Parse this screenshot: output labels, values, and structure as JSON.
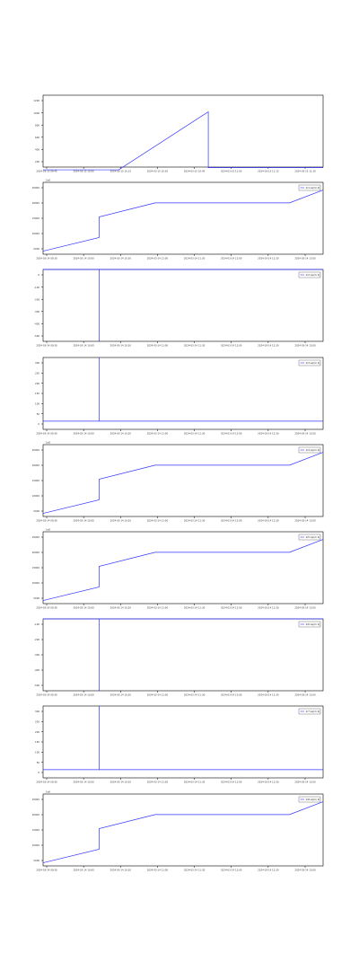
{
  "chart_data": [
    {
      "type": "line",
      "legend": "",
      "legend_position": "none",
      "offset_label": "",
      "xticks": [
        "2024-03-15 09:45",
        "2024-03-15 10:00",
        "2024-03-15 10:15",
        "2024-03-15 10:30",
        "2024-03-15 10:45",
        "2024-03-15 11:00",
        "2024-03-15 11:15",
        "2024-03-15 11:30"
      ],
      "yticks": [
        "1200",
        "1000",
        "800",
        "600",
        "400",
        "200"
      ],
      "ylim": [
        50,
        1350
      ],
      "series": [
        {
          "x": [
            0,
            0.27,
            0.59,
            0.59,
            1
          ],
          "y": [
            0,
            0,
            1050,
            40,
            40
          ]
        }
      ],
      "grid": false
    },
    {
      "type": "line",
      "legend": "1/1 sq/m 1[",
      "legend_position": "top-right",
      "offset_label": "1e8",
      "xticks": [
        "2024-03-14 09:30",
        "2024-03-14 10:00",
        "2024-03-14 10:30",
        "2024-03-14 11:00",
        "2024-03-14 11:30",
        "2024-03-14 12:00",
        "2024-03-14 12:30",
        "2024-03-14 13:00"
      ],
      "yticks": [
        "25000",
        "20000",
        "15000",
        "10000",
        "5000"
      ],
      "ylim": [
        0,
        28000
      ],
      "series": [
        {
          "x": [
            0,
            0.2,
            0.2,
            0.4,
            0.88,
            1
          ],
          "y": [
            1200,
            6500,
            14500,
            20000,
            20000,
            25000
          ]
        }
      ],
      "grid": false
    },
    {
      "type": "line",
      "legend": "1/2 sq/m 1[",
      "legend_position": "top-right",
      "offset_label": "",
      "xticks": [
        "2024-03-14 09:30",
        "2024-03-14 10:00",
        "2024-03-14 10:30",
        "2024-03-14 11:00",
        "2024-03-14 11:30",
        "2024-03-14 12:00",
        "2024-03-14 12:30",
        "2024-03-14 13:00"
      ],
      "yticks": [
        "0",
        "-100",
        "-200",
        "-300",
        "-400",
        "-500"
      ],
      "ylim": [
        -540,
        0
      ],
      "series": [
        {
          "x": [
            0,
            0.2,
            0.2,
            0.2,
            1
          ],
          "y": [
            0,
            0,
            -540,
            0,
            0
          ]
        }
      ],
      "grid": false
    },
    {
      "type": "line",
      "legend": "1/3 sq/m 1[",
      "legend_position": "top-right",
      "offset_label": "",
      "xticks": [
        "2024-03-14 09:30",
        "2024-03-14 10:00",
        "2024-03-14 10:30",
        "2024-03-14 11:00",
        "2024-03-14 11:30",
        "2024-03-14 12:00",
        "2024-03-14 12:30",
        "2024-03-14 13:00"
      ],
      "yticks": [
        "300",
        "250",
        "200",
        "150",
        "100",
        "50",
        "0"
      ],
      "ylim": [
        -40,
        310
      ],
      "series": [
        {
          "x": [
            0,
            0.2,
            0.2,
            0.2,
            1
          ],
          "y": [
            0,
            0,
            310,
            0,
            0
          ]
        }
      ],
      "grid": false
    },
    {
      "type": "line",
      "legend": "1/4 sq/m 1[",
      "legend_position": "top-right",
      "offset_label": "1e8",
      "xticks": [
        "2024-03-14 09:30",
        "2024-03-14 10:00",
        "2024-03-14 10:30",
        "2024-03-14 11:00",
        "2024-03-14 11:30",
        "2024-03-14 12:00",
        "2024-03-14 12:30",
        "2024-03-14 13:00"
      ],
      "yticks": [
        "25000",
        "20000",
        "15000",
        "10000",
        "5000"
      ],
      "ylim": [
        0,
        28000
      ],
      "series": [
        {
          "x": [
            0,
            0.2,
            0.2,
            0.4,
            0.88,
            1
          ],
          "y": [
            1200,
            6500,
            14500,
            20000,
            20000,
            25000
          ]
        }
      ],
      "grid": false
    },
    {
      "type": "line",
      "legend": "1/5 sq/m 1[",
      "legend_position": "top-right",
      "offset_label": "1e8",
      "xticks": [
        "2024-03-14 09:30",
        "2024-03-14 10:00",
        "2024-03-14 10:30",
        "2024-03-14 11:00",
        "2024-03-14 11:30",
        "2024-03-14 12:00",
        "2024-03-14 12:30",
        "2024-03-14 13:00"
      ],
      "yticks": [
        "25000",
        "20000",
        "15000",
        "10000",
        "5000"
      ],
      "ylim": [
        0,
        28000
      ],
      "series": [
        {
          "x": [
            0,
            0.2,
            0.2,
            0.4,
            0.88,
            1
          ],
          "y": [
            1200,
            6500,
            14500,
            20000,
            20000,
            25000
          ]
        }
      ],
      "grid": false
    },
    {
      "type": "line",
      "legend": "1/6 sq/m 1[",
      "legend_position": "top-right",
      "offset_label": "",
      "xticks": [
        "2024-03-14 09:30",
        "2024-03-14 10:00",
        "2024-03-14 10:30",
        "2024-03-14 11:00",
        "2024-03-14 11:30",
        "2024-03-14 12:00",
        "2024-03-14 12:30",
        "2024-03-14 13:00"
      ],
      "yticks": [
        "-100",
        "-200",
        "-300",
        "-400",
        "-500"
      ],
      "ylim": [
        -550,
        0
      ],
      "series": [
        {
          "x": [
            0,
            0.2,
            0.2,
            0.2,
            1
          ],
          "y": [
            0,
            0,
            -550,
            0,
            0
          ]
        }
      ],
      "grid": false
    },
    {
      "type": "line",
      "legend": "1/7 sq/m 1[",
      "legend_position": "top-right",
      "offset_label": "",
      "xticks": [
        "2024-03-14 09:30",
        "2024-03-14 10:00",
        "2024-03-14 10:30",
        "2024-03-14 11:00",
        "2024-03-14 11:30",
        "2024-03-14 12:00",
        "2024-03-14 12:30",
        "2024-03-14 13:00"
      ],
      "yticks": [
        "300",
        "250",
        "200",
        "150",
        "100",
        "50",
        "0"
      ],
      "ylim": [
        -40,
        310
      ],
      "series": [
        {
          "x": [
            0,
            0.2,
            0.2,
            0.2,
            1
          ],
          "y": [
            0,
            0,
            310,
            0,
            0
          ]
        }
      ],
      "grid": false
    },
    {
      "type": "line",
      "legend": "1/8 sq/m 1[",
      "legend_position": "top-right",
      "offset_label": "1e8",
      "xticks": [
        "2024-03-14 09:30",
        "2024-03-14 10:00",
        "2024-03-14 10:30",
        "2024-03-14 11:00",
        "2024-03-14 11:30",
        "2024-03-14 12:00",
        "2024-03-14 12:30",
        "2024-03-14 13:00"
      ],
      "yticks": [
        "25000",
        "20000",
        "15000",
        "10000",
        "5000"
      ],
      "ylim": [
        0,
        28000
      ],
      "series": [
        {
          "x": [
            0,
            0.2,
            0.2,
            0.4,
            0.88,
            1
          ],
          "y": [
            1200,
            6500,
            14500,
            20000,
            20000,
            25000
          ]
        }
      ],
      "grid": false
    }
  ],
  "colors": {
    "line": "#3333ff",
    "axis": "#000000",
    "tick_text": "#333333",
    "background": "#ffffff"
  }
}
